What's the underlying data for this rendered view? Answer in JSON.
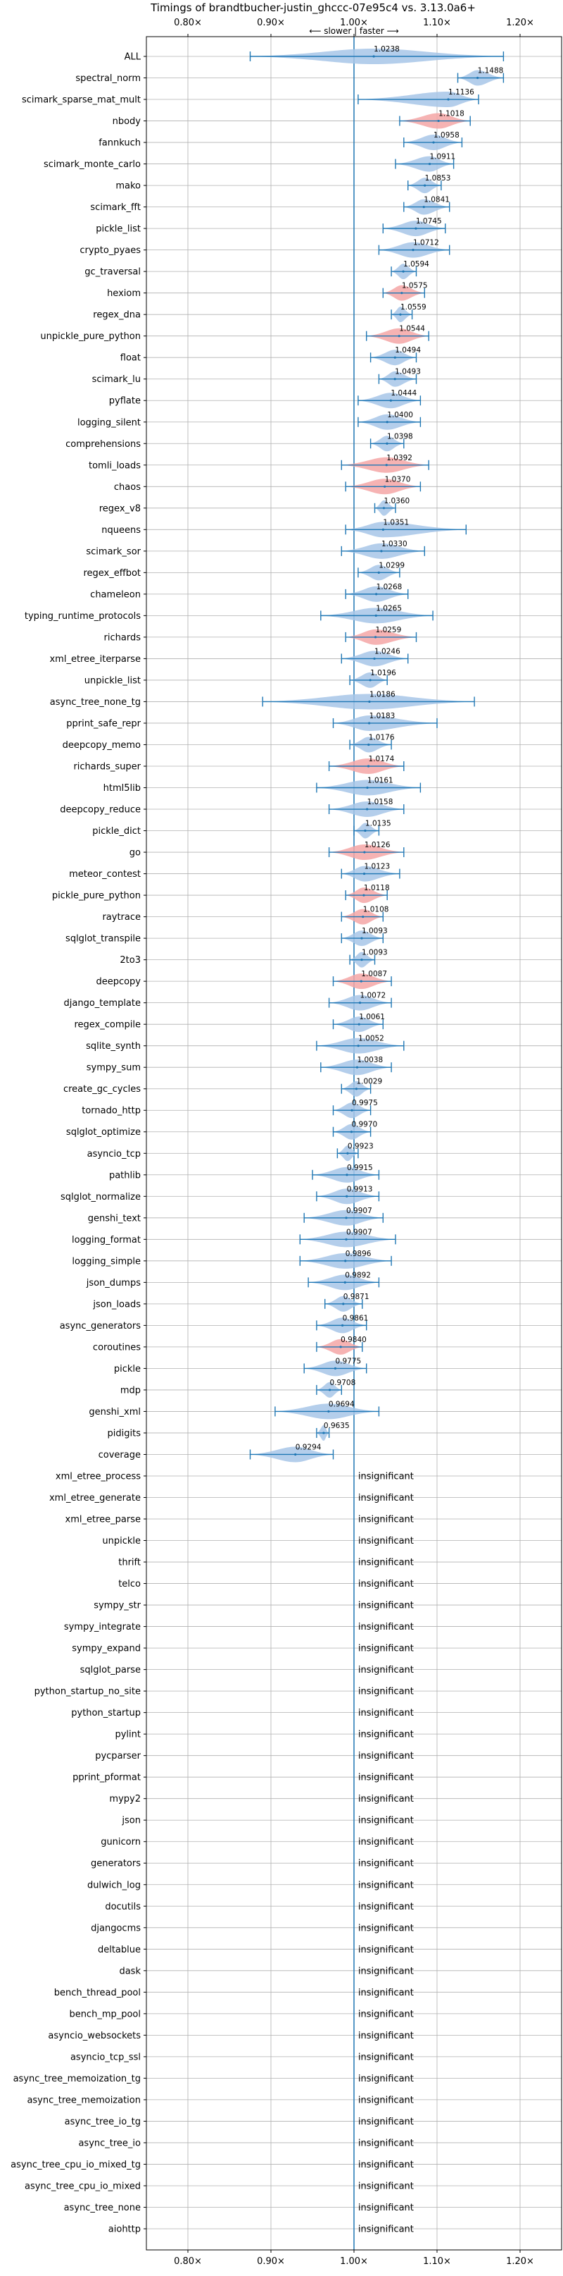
{
  "chart_data": {
    "type": "violin",
    "title": "Timings of brandtbucher-justin_ghccc-07e95c4 vs. 3.13.0a6+",
    "direction_note": "⟵ slower | faster ⟶",
    "xlim": [
      0.75,
      1.25
    ],
    "xticks": [
      0.8,
      0.9,
      1.0,
      1.1,
      1.2
    ],
    "xtick_labels": [
      "0.80×",
      "0.90×",
      "1.00×",
      "1.10×",
      "1.20×"
    ],
    "reference_line": 1.0,
    "grid": true,
    "colors": {
      "faster": "#a7c6e7",
      "slower": "#f4a6a6",
      "errorbar": "#1f77b4",
      "reference": "#1f77b4"
    },
    "insignificant_label": "insignificant",
    "benchmarks": [
      {
        "name": "ALL",
        "mean": 1.0238,
        "low": 0.875,
        "high": 1.18,
        "color": "faster"
      },
      {
        "name": "spectral_norm",
        "mean": 1.1488,
        "low": 1.125,
        "high": 1.18,
        "color": "faster"
      },
      {
        "name": "scimark_sparse_mat_mult",
        "mean": 1.1136,
        "low": 1.005,
        "high": 1.15,
        "color": "faster"
      },
      {
        "name": "nbody",
        "mean": 1.1018,
        "low": 1.055,
        "high": 1.14,
        "color": "slower"
      },
      {
        "name": "fannkuch",
        "mean": 1.0958,
        "low": 1.06,
        "high": 1.13,
        "color": "faster"
      },
      {
        "name": "scimark_monte_carlo",
        "mean": 1.0911,
        "low": 1.05,
        "high": 1.12,
        "color": "faster"
      },
      {
        "name": "mako",
        "mean": 1.0853,
        "low": 1.065,
        "high": 1.105,
        "color": "faster"
      },
      {
        "name": "scimark_fft",
        "mean": 1.0841,
        "low": 1.06,
        "high": 1.115,
        "color": "faster"
      },
      {
        "name": "pickle_list",
        "mean": 1.0745,
        "low": 1.035,
        "high": 1.11,
        "color": "faster"
      },
      {
        "name": "crypto_pyaes",
        "mean": 1.0712,
        "low": 1.03,
        "high": 1.115,
        "color": "faster"
      },
      {
        "name": "gc_traversal",
        "mean": 1.0594,
        "low": 1.045,
        "high": 1.075,
        "color": "faster"
      },
      {
        "name": "hexiom",
        "mean": 1.0575,
        "low": 1.035,
        "high": 1.085,
        "color": "slower"
      },
      {
        "name": "regex_dna",
        "mean": 1.0559,
        "low": 1.045,
        "high": 1.07,
        "color": "faster"
      },
      {
        "name": "unpickle_pure_python",
        "mean": 1.0544,
        "low": 1.015,
        "high": 1.09,
        "color": "slower"
      },
      {
        "name": "float",
        "mean": 1.0494,
        "low": 1.02,
        "high": 1.075,
        "color": "faster"
      },
      {
        "name": "scimark_lu",
        "mean": 1.0493,
        "low": 1.03,
        "high": 1.075,
        "color": "faster"
      },
      {
        "name": "pyflate",
        "mean": 1.0444,
        "low": 1.005,
        "high": 1.08,
        "color": "faster"
      },
      {
        "name": "logging_silent",
        "mean": 1.04,
        "low": 1.005,
        "high": 1.08,
        "color": "faster"
      },
      {
        "name": "comprehensions",
        "mean": 1.0398,
        "low": 1.02,
        "high": 1.06,
        "color": "faster"
      },
      {
        "name": "tomli_loads",
        "mean": 1.0392,
        "low": 0.985,
        "high": 1.09,
        "color": "slower"
      },
      {
        "name": "chaos",
        "mean": 1.037,
        "low": 0.99,
        "high": 1.08,
        "color": "slower"
      },
      {
        "name": "regex_v8",
        "mean": 1.036,
        "low": 1.025,
        "high": 1.05,
        "color": "faster"
      },
      {
        "name": "nqueens",
        "mean": 1.0351,
        "low": 0.99,
        "high": 1.135,
        "color": "faster"
      },
      {
        "name": "scimark_sor",
        "mean": 1.033,
        "low": 0.985,
        "high": 1.085,
        "color": "faster"
      },
      {
        "name": "regex_effbot",
        "mean": 1.0299,
        "low": 1.005,
        "high": 1.055,
        "color": "faster"
      },
      {
        "name": "chameleon",
        "mean": 1.0268,
        "low": 0.99,
        "high": 1.065,
        "color": "faster"
      },
      {
        "name": "typing_runtime_protocols",
        "mean": 1.0265,
        "low": 0.96,
        "high": 1.095,
        "color": "faster"
      },
      {
        "name": "richards",
        "mean": 1.0259,
        "low": 0.99,
        "high": 1.075,
        "color": "slower"
      },
      {
        "name": "xml_etree_iterparse",
        "mean": 1.0246,
        "low": 0.985,
        "high": 1.065,
        "color": "faster"
      },
      {
        "name": "unpickle_list",
        "mean": 1.0196,
        "low": 0.995,
        "high": 1.04,
        "color": "faster"
      },
      {
        "name": "async_tree_none_tg",
        "mean": 1.0186,
        "low": 0.89,
        "high": 1.145,
        "color": "faster"
      },
      {
        "name": "pprint_safe_repr",
        "mean": 1.0183,
        "low": 0.975,
        "high": 1.1,
        "color": "faster"
      },
      {
        "name": "deepcopy_memo",
        "mean": 1.0176,
        "low": 0.995,
        "high": 1.045,
        "color": "faster"
      },
      {
        "name": "richards_super",
        "mean": 1.0174,
        "low": 0.97,
        "high": 1.06,
        "color": "slower"
      },
      {
        "name": "html5lib",
        "mean": 1.0161,
        "low": 0.955,
        "high": 1.08,
        "color": "faster"
      },
      {
        "name": "deepcopy_reduce",
        "mean": 1.0158,
        "low": 0.97,
        "high": 1.06,
        "color": "faster"
      },
      {
        "name": "pickle_dict",
        "mean": 1.0135,
        "low": 1.0,
        "high": 1.03,
        "color": "faster"
      },
      {
        "name": "go",
        "mean": 1.0126,
        "low": 0.97,
        "high": 1.06,
        "color": "slower"
      },
      {
        "name": "meteor_contest",
        "mean": 1.0123,
        "low": 0.985,
        "high": 1.055,
        "color": "faster"
      },
      {
        "name": "pickle_pure_python",
        "mean": 1.0118,
        "low": 0.99,
        "high": 1.04,
        "color": "slower"
      },
      {
        "name": "raytrace",
        "mean": 1.0108,
        "low": 0.985,
        "high": 1.035,
        "color": "slower"
      },
      {
        "name": "sqlglot_transpile",
        "mean": 1.0093,
        "low": 0.985,
        "high": 1.035,
        "color": "faster"
      },
      {
        "name": "2to3",
        "mean": 1.0093,
        "low": 0.995,
        "high": 1.025,
        "color": "faster"
      },
      {
        "name": "deepcopy",
        "mean": 1.0087,
        "low": 0.975,
        "high": 1.045,
        "color": "slower"
      },
      {
        "name": "django_template",
        "mean": 1.0072,
        "low": 0.97,
        "high": 1.045,
        "color": "faster"
      },
      {
        "name": "regex_compile",
        "mean": 1.0061,
        "low": 0.975,
        "high": 1.035,
        "color": "faster"
      },
      {
        "name": "sqlite_synth",
        "mean": 1.0052,
        "low": 0.955,
        "high": 1.06,
        "color": "faster"
      },
      {
        "name": "sympy_sum",
        "mean": 1.0038,
        "low": 0.96,
        "high": 1.045,
        "color": "faster"
      },
      {
        "name": "create_gc_cycles",
        "mean": 1.0029,
        "low": 0.985,
        "high": 1.02,
        "color": "faster"
      },
      {
        "name": "tornado_http",
        "mean": 0.9975,
        "low": 0.975,
        "high": 1.02,
        "color": "faster"
      },
      {
        "name": "sqlglot_optimize",
        "mean": 0.997,
        "low": 0.975,
        "high": 1.02,
        "color": "faster"
      },
      {
        "name": "asyncio_tcp",
        "mean": 0.9923,
        "low": 0.98,
        "high": 1.005,
        "color": "faster"
      },
      {
        "name": "pathlib",
        "mean": 0.9915,
        "low": 0.95,
        "high": 1.03,
        "color": "faster"
      },
      {
        "name": "sqlglot_normalize",
        "mean": 0.9913,
        "low": 0.955,
        "high": 1.03,
        "color": "faster"
      },
      {
        "name": "genshi_text",
        "mean": 0.9907,
        "low": 0.94,
        "high": 1.035,
        "color": "faster"
      },
      {
        "name": "logging_format",
        "mean": 0.9907,
        "low": 0.935,
        "high": 1.05,
        "color": "faster"
      },
      {
        "name": "logging_simple",
        "mean": 0.9896,
        "low": 0.935,
        "high": 1.045,
        "color": "faster"
      },
      {
        "name": "json_dumps",
        "mean": 0.9892,
        "low": 0.945,
        "high": 1.03,
        "color": "faster"
      },
      {
        "name": "json_loads",
        "mean": 0.9871,
        "low": 0.965,
        "high": 1.01,
        "color": "faster"
      },
      {
        "name": "async_generators",
        "mean": 0.9861,
        "low": 0.955,
        "high": 1.015,
        "color": "faster"
      },
      {
        "name": "coroutines",
        "mean": 0.984,
        "low": 0.955,
        "high": 1.01,
        "color": "slower"
      },
      {
        "name": "pickle",
        "mean": 0.9775,
        "low": 0.94,
        "high": 1.015,
        "color": "faster"
      },
      {
        "name": "mdp",
        "mean": 0.9708,
        "low": 0.955,
        "high": 0.985,
        "color": "faster"
      },
      {
        "name": "genshi_xml",
        "mean": 0.9694,
        "low": 0.905,
        "high": 1.03,
        "color": "faster"
      },
      {
        "name": "pidigits",
        "mean": 0.9635,
        "low": 0.955,
        "high": 0.97,
        "color": "faster"
      },
      {
        "name": "coverage",
        "mean": 0.9294,
        "low": 0.875,
        "high": 0.975,
        "color": "faster"
      }
    ],
    "insignificant": [
      "xml_etree_process",
      "xml_etree_generate",
      "xml_etree_parse",
      "unpickle",
      "thrift",
      "telco",
      "sympy_str",
      "sympy_integrate",
      "sympy_expand",
      "sqlglot_parse",
      "python_startup_no_site",
      "python_startup",
      "pylint",
      "pycparser",
      "pprint_pformat",
      "mypy2",
      "json",
      "gunicorn",
      "generators",
      "dulwich_log",
      "docutils",
      "djangocms",
      "deltablue",
      "dask",
      "bench_thread_pool",
      "bench_mp_pool",
      "asyncio_websockets",
      "asyncio_tcp_ssl",
      "async_tree_memoization_tg",
      "async_tree_memoization",
      "async_tree_io_tg",
      "async_tree_io",
      "async_tree_cpu_io_mixed_tg",
      "async_tree_cpu_io_mixed",
      "async_tree_none",
      "aiohttp"
    ]
  }
}
